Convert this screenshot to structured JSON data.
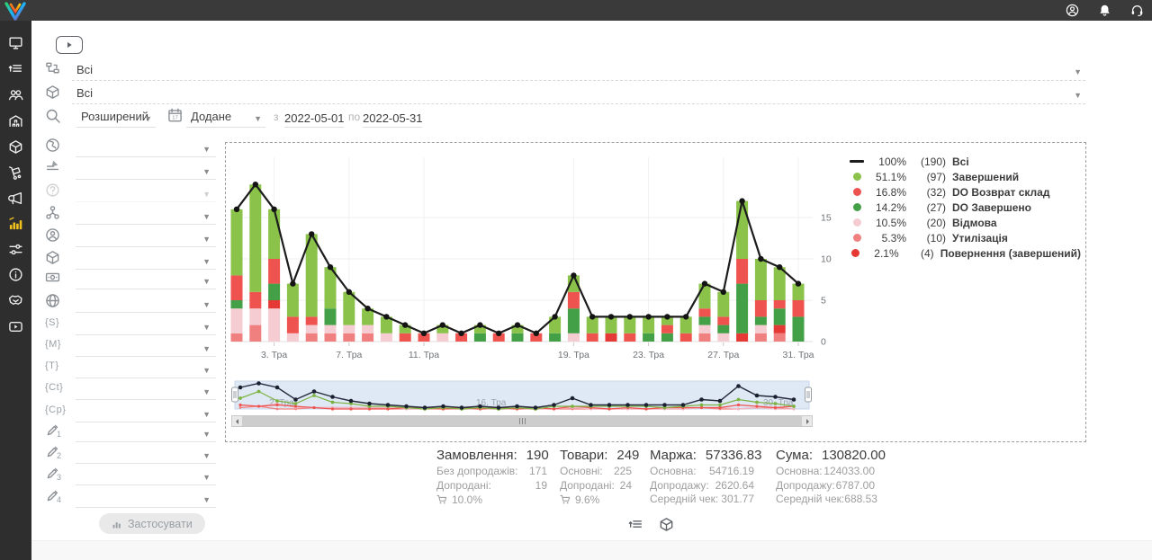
{
  "theme": {
    "topbar_bg": "#3a3a3a",
    "sidebar_bg": "#2e2e2e",
    "active_icon": "#f2c01d"
  },
  "topbar": {
    "icons": [
      {
        "name": "user-account",
        "icon": "user-round"
      },
      {
        "name": "notifications",
        "icon": "bell"
      },
      {
        "name": "support",
        "icon": "headset"
      }
    ]
  },
  "sidebar": {
    "items": [
      {
        "name": "dashboard",
        "icon": "monitor"
      },
      {
        "name": "orders",
        "icon": "orders"
      },
      {
        "name": "customers",
        "icon": "customers"
      },
      {
        "name": "warehouse",
        "icon": "warehouse"
      },
      {
        "name": "products",
        "icon": "cube"
      },
      {
        "name": "supply",
        "icon": "trolley"
      },
      {
        "name": "marketing",
        "icon": "megaphone"
      },
      {
        "name": "analytics",
        "icon": "analytics",
        "active": true
      },
      {
        "name": "automation",
        "icon": "sliders"
      },
      {
        "name": "info",
        "icon": "info"
      },
      {
        "name": "partners",
        "icon": "partners"
      },
      {
        "name": "tutorials",
        "icon": "tutorials"
      }
    ]
  },
  "filters": {
    "video_button": {
      "icon": "play"
    },
    "top_selects": [
      {
        "name": "statuses",
        "icon": "flow",
        "value": "Всі"
      },
      {
        "name": "products",
        "icon": "cube",
        "value": "Всі"
      }
    ],
    "search": {
      "icon": "search",
      "mode": "Розширений",
      "calendar_icon": "calendar",
      "date_field": "Додане",
      "from_label": "з",
      "date_from": "2022-05-01",
      "to_label": "по",
      "date_to": "2022-05-31"
    },
    "rows": [
      {
        "icon": "globe-art"
      },
      {
        "icon": "pen-lines"
      },
      {
        "icon": "help",
        "disabled": true
      },
      {
        "icon": "org"
      },
      {
        "icon": "user-circle"
      },
      {
        "icon": "cube"
      },
      {
        "icon": "banknote"
      },
      {
        "icon": "globe-wire"
      },
      {
        "icon": "brace-s",
        "text": "{S}"
      },
      {
        "icon": "brace-m",
        "text": "{M}"
      },
      {
        "icon": "brace-t",
        "text": "{T}"
      },
      {
        "icon": "brace-ct",
        "text": "{Ct}"
      },
      {
        "icon": "brace-cp",
        "text": "{Cp}"
      },
      {
        "icon": "pencil",
        "sub": "1"
      },
      {
        "icon": "pencil",
        "sub": "2"
      },
      {
        "icon": "pencil",
        "sub": "3"
      },
      {
        "icon": "pencil",
        "sub": "4"
      }
    ],
    "apply_label": "Застосувати",
    "apply_icon": "mini-bars"
  },
  "chart_data": {
    "type": "stacked-bar-line",
    "x_unit": "day of May 2022",
    "x_ticks": [
      {
        "day": 3,
        "label": "3. Тра"
      },
      {
        "day": 7,
        "label": "7. Тра"
      },
      {
        "day": 11,
        "label": "11. Тра"
      },
      {
        "day": 19,
        "label": "19. Тра"
      },
      {
        "day": 23,
        "label": "23. Тра"
      },
      {
        "day": 27,
        "label": "27. Тра"
      },
      {
        "day": 31,
        "label": "31. Тра"
      }
    ],
    "y_ticks": [
      0,
      5,
      10,
      15
    ],
    "line_series": {
      "name": "Всі",
      "color": "#1c1c1c",
      "values": [
        16,
        19,
        16,
        7,
        13,
        9,
        6,
        4,
        3,
        2,
        1,
        2,
        1,
        2,
        1,
        2,
        1,
        3,
        8,
        3,
        3,
        3,
        3,
        3,
        3,
        7,
        6,
        17,
        10,
        9,
        7
      ]
    },
    "bar_series": [
      {
        "name": "Утилізація",
        "color": "#f08080",
        "values": [
          1,
          2,
          0,
          0,
          1,
          1,
          1,
          1,
          0,
          0,
          0,
          0,
          0,
          0,
          0,
          0,
          0,
          0,
          0,
          0,
          0,
          0,
          0,
          0,
          0,
          1,
          0,
          0,
          1,
          1,
          0
        ]
      },
      {
        "name": "Відмова",
        "color": "#f5ccd2",
        "values": [
          3,
          2,
          4,
          1,
          1,
          1,
          1,
          1,
          1,
          0,
          0,
          1,
          0,
          0,
          0,
          0,
          0,
          0,
          1,
          0,
          0,
          0,
          0,
          0,
          0,
          1,
          1,
          0,
          1,
          0,
          0
        ]
      },
      {
        "name": "Повернення (завершений)",
        "color": "#e53935",
        "values": [
          0,
          0,
          1,
          0,
          0,
          0,
          0,
          0,
          0,
          0,
          0,
          0,
          0,
          0,
          0,
          0,
          0,
          0,
          0,
          0,
          1,
          0,
          0,
          0,
          0,
          0,
          0,
          1,
          0,
          1,
          0
        ]
      },
      {
        "name": "DO Завершено",
        "color": "#43a047",
        "values": [
          1,
          0,
          2,
          0,
          0,
          2,
          0,
          0,
          0,
          0,
          0,
          0,
          0,
          1,
          0,
          1,
          0,
          1,
          3,
          0,
          0,
          0,
          1,
          1,
          0,
          1,
          1,
          6,
          1,
          2,
          3
        ]
      },
      {
        "name": "DO Возврат склад",
        "color": "#ef5350",
        "values": [
          3,
          2,
          3,
          2,
          1,
          0,
          0,
          0,
          0,
          1,
          1,
          0,
          1,
          0,
          1,
          0,
          1,
          0,
          2,
          1,
          0,
          1,
          0,
          1,
          1,
          1,
          1,
          3,
          2,
          1,
          2
        ]
      },
      {
        "name": "Завершений",
        "color": "#8ac24a",
        "values": [
          8,
          13,
          6,
          4,
          10,
          5,
          4,
          2,
          2,
          1,
          0,
          1,
          0,
          1,
          0,
          1,
          0,
          2,
          2,
          2,
          2,
          2,
          2,
          1,
          2,
          3,
          3,
          7,
          5,
          4,
          2
        ]
      }
    ],
    "navigator": {
      "labels": [
        {
          "pos": 0.06,
          "label": "2. Тра"
        },
        {
          "pos": 0.42,
          "label": "16. Тра"
        },
        {
          "pos": 0.92,
          "label": "30. Тра"
        }
      ]
    }
  },
  "legend": {
    "items": [
      {
        "marker": "line",
        "color": "#1c1c1c",
        "pct": "100%",
        "count": "(190)",
        "label": "Всі"
      },
      {
        "marker": "dot",
        "color": "#8ac24a",
        "pct": "51.1%",
        "count": "(97)",
        "label": "Завершений"
      },
      {
        "marker": "dot",
        "color": "#ef5350",
        "pct": "16.8%",
        "count": "(32)",
        "label": "DO Возврат склад"
      },
      {
        "marker": "dot",
        "color": "#43a047",
        "pct": "14.2%",
        "count": "(27)",
        "label": "DO Завершено"
      },
      {
        "marker": "dot",
        "color": "#f5ccd2",
        "pct": "10.5%",
        "count": "(20)",
        "label": "Відмова"
      },
      {
        "marker": "dot",
        "color": "#f08080",
        "pct": "5.3%",
        "count": "(10)",
        "label": "Утилізація"
      },
      {
        "marker": "dot",
        "color": "#e53935",
        "pct": "2.1%",
        "count": "(4)",
        "label": "Повернення (завершений)"
      }
    ]
  },
  "summary": {
    "columns": [
      {
        "title": "Замовлення:",
        "value": "190",
        "rows": [
          {
            "label": "Без допродажів:",
            "value": "171"
          },
          {
            "label": "Допродані:",
            "value": "19"
          }
        ],
        "cart_pct": "10.0%"
      },
      {
        "title": "Товари:",
        "value": "249",
        "rows": [
          {
            "label": "Основні:",
            "value": "225"
          },
          {
            "label": "Допродані:",
            "value": "24"
          }
        ],
        "cart_pct": "9.6%"
      },
      {
        "title": "Маржа:",
        "value": "57336.83",
        "rows": [
          {
            "label": "Основна:",
            "value": "54716.19"
          },
          {
            "label": "Допродажу:",
            "value": "2620.64"
          },
          {
            "label": "Середній чек:",
            "value": "301.77"
          }
        ],
        "cart_pct": ""
      },
      {
        "title": "Сума:",
        "value": "130820.00",
        "rows": [
          {
            "label": "Основна:",
            "value": "124033.00"
          },
          {
            "label": "Допродажу:",
            "value": "6787.00"
          },
          {
            "label": "Середній чек:",
            "value": "688.53"
          }
        ],
        "cart_pct": ""
      }
    ]
  },
  "footer": {
    "icons": [
      {
        "name": "orders-view",
        "icon": "orders"
      },
      {
        "name": "products-view",
        "icon": "cube"
      }
    ]
  }
}
